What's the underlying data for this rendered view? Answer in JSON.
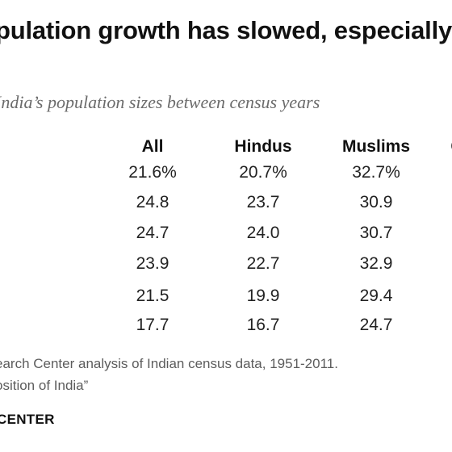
{
  "title": "pulation growth has slowed, especially",
  "subtitle": "India’s population sizes between census years",
  "chart_data": {
    "type": "table",
    "columns": [
      "All",
      "Hindus",
      "Muslims",
      "C"
    ],
    "rows": [
      [
        "21.6%",
        "20.7%",
        "32.7%"
      ],
      [
        "24.8",
        "23.7",
        "30.9"
      ],
      [
        "24.7",
        "24.0",
        "30.7"
      ],
      [
        "23.9",
        "22.7",
        "32.9"
      ],
      [
        "21.5",
        "19.9",
        "29.4"
      ],
      [
        "17.7",
        "16.7",
        "24.7"
      ]
    ]
  },
  "source": "earch Center analysis of Indian census data, 1951-2011.",
  "note": "osition of India”",
  "logo_text": "CENTER"
}
